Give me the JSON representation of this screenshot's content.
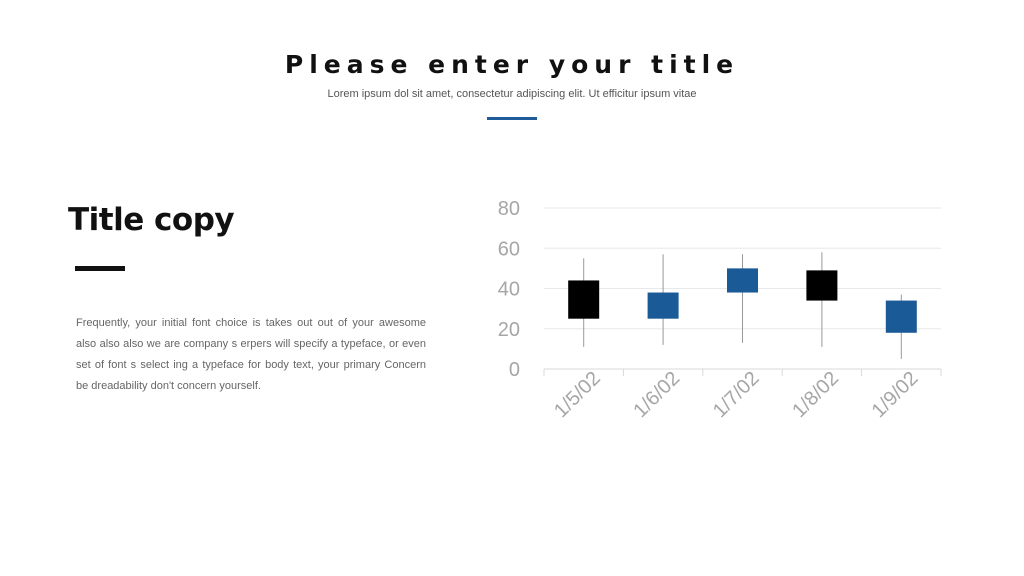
{
  "header": {
    "title": "Please enter your title",
    "subtitle": "Lorem ipsum dol sit amet, consectetur adipiscing elit. Ut efficitur ipsum vitae",
    "accent_color": "#1f5c99"
  },
  "left_panel": {
    "title": "Title copy",
    "body": "Frequently, your initial font choice is takes out out of your awesome also also also we are company s erpers will specify a typeface, or even set of font s select ing a typeface for body text, your primary Concern be dreadability don't concern yourself."
  },
  "chart_data": {
    "type": "candlestick",
    "title": "",
    "xlabel": "",
    "ylabel": "",
    "ylim": [
      0,
      80
    ],
    "y_ticks": [
      0,
      20,
      40,
      60,
      80
    ],
    "grid": true,
    "categories": [
      "1/5/02",
      "1/6/02",
      "1/7/02",
      "1/8/02",
      "1/9/02"
    ],
    "series": [
      {
        "open": [
          44,
          25,
          38,
          49,
          18
        ],
        "high": [
          55,
          57,
          57,
          58,
          37
        ],
        "low": [
          11,
          12,
          13,
          11,
          5
        ],
        "close": [
          25,
          38,
          50,
          34,
          34
        ]
      }
    ],
    "colors": {
      "rising": "#1a5a96",
      "falling": "#000000",
      "wick": "#999999",
      "grid": "#e8e8e8",
      "tick_text": "#a6a6a6"
    }
  }
}
